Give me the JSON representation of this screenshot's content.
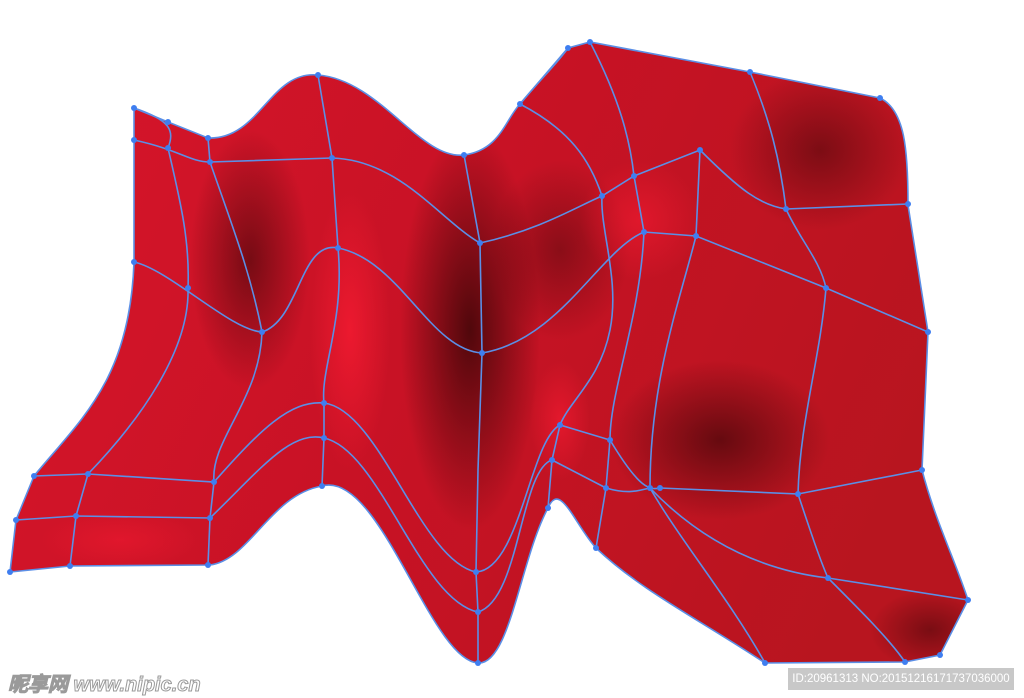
{
  "colors": {
    "surface": "#d3142a",
    "shadow": "#5a0a0e",
    "mesh_line": "#5b8fe6",
    "mesh_point": "#3f7ef0"
  },
  "watermark": {
    "site": "昵享网 www.nipic.cn",
    "id_text": "ID:20961313 NO:20151216171737036000"
  }
}
